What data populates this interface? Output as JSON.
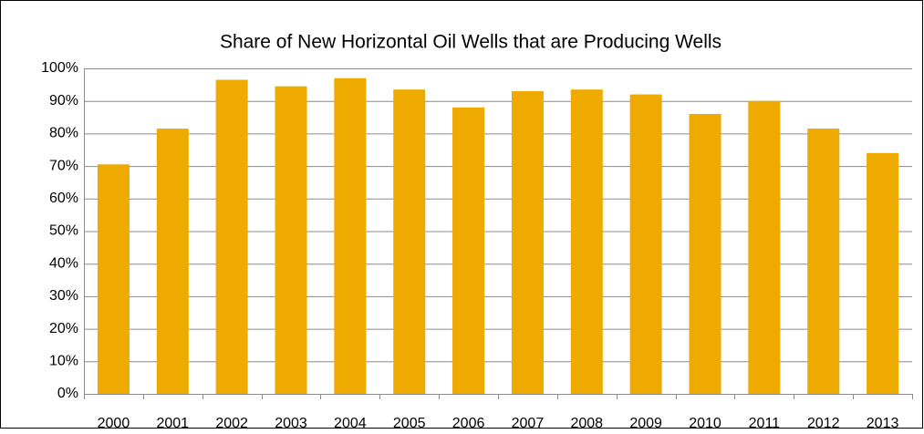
{
  "chart_data": {
    "type": "bar",
    "title": "Share of New Horizontal Oil Wells that are Producing Wells",
    "categories": [
      "2000",
      "2001",
      "2002",
      "2003",
      "2004",
      "2005",
      "2006",
      "2007",
      "2008",
      "2009",
      "2010",
      "2011",
      "2012",
      "2013"
    ],
    "values": [
      70.5,
      81.5,
      96.5,
      94.5,
      97,
      93.5,
      88,
      93,
      93.5,
      92,
      86,
      90,
      81.5,
      74
    ],
    "color": "#efaa00",
    "ylim": [
      0,
      100
    ],
    "yticks": [
      {
        "value": 0,
        "label": "0%"
      },
      {
        "value": 10,
        "label": "10%"
      },
      {
        "value": 20,
        "label": "20%"
      },
      {
        "value": 30,
        "label": "30%"
      },
      {
        "value": 40,
        "label": "40%"
      },
      {
        "value": 50,
        "label": "50%"
      },
      {
        "value": 60,
        "label": "60%"
      },
      {
        "value": 70,
        "label": "70%"
      },
      {
        "value": 80,
        "label": "80%"
      },
      {
        "value": 90,
        "label": "90%"
      },
      {
        "value": 100,
        "label": "100%"
      }
    ],
    "grid": true
  }
}
